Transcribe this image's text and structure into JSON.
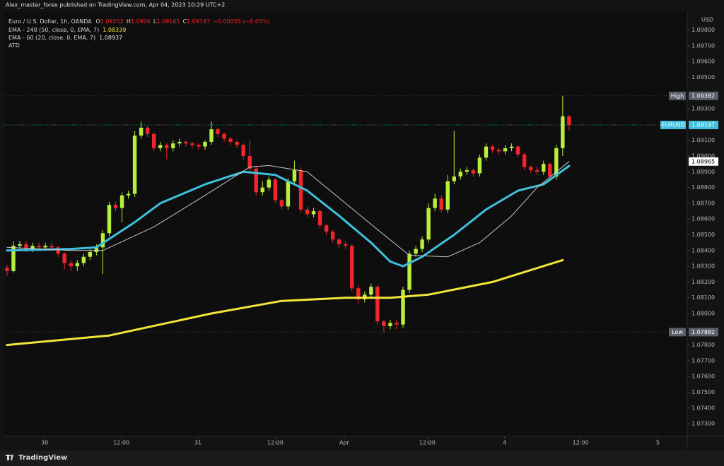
{
  "chart_data": {
    "type": "candlestick",
    "publisher": "Alex_master_forex published on TradingView.com, Apr 04, 2023 10:29 UTC+2",
    "title": "Euro / U.S. Dollar, 1h, OANDA",
    "ohlc_legend": [
      {
        "key": "O",
        "value": 1.09252
      },
      {
        "key": "H",
        "value": 1.0926
      },
      {
        "key": "L",
        "value": 1.09161
      },
      {
        "key": "C",
        "value": 1.09197
      }
    ],
    "change": "−0.00055 (−0.05%)",
    "currency": "USD",
    "brand": "TradingView",
    "up_color": "#b8ee3c",
    "down_color": "#f0262b",
    "grid": false,
    "open": [
      1.0829,
      1.0827,
      1.0843,
      1.0844,
      1.0841,
      1.0843,
      1.0842,
      1.0843,
      1.0842,
      1.0838,
      1.0832,
      1.083,
      1.0832,
      1.0836,
      1.0839,
      1.0842,
      1.0851,
      1.0869,
      1.0867,
      1.0875,
      1.0876,
      1.0913,
      1.0918,
      1.0914,
      1.0905,
      1.0907,
      1.0905,
      1.0908,
      1.0909,
      1.0908,
      1.0907,
      1.0906,
      1.0909,
      1.0917,
      1.0914,
      1.0911,
      1.0909,
      1.0907,
      1.09,
      1.0892,
      1.0877,
      1.088,
      1.0885,
      1.0872,
      1.0868,
      1.0884,
      1.0891,
      1.0866,
      1.0863,
      1.0865,
      1.0856,
      1.0852,
      1.0847,
      1.0844,
      1.0843,
      1.0816,
      1.0809,
      1.0812,
      1.0817,
      1.0795,
      1.0792,
      1.0794,
      1.0793,
      1.0815,
      1.0838,
      1.0841,
      1.0847,
      1.0867,
      1.0873,
      1.0866,
      1.0884,
      1.0887,
      1.089,
      1.0891,
      1.0889,
      1.0899,
      1.0906,
      1.0904,
      1.0903,
      1.0905,
      1.0906,
      1.0901,
      1.0893,
      1.0891,
      1.089,
      1.0895,
      1.0887,
      1.0905,
      1.09252
    ],
    "high": [
      1.0831,
      1.0846,
      1.0846,
      1.0846,
      1.0845,
      1.0845,
      1.0845,
      1.0845,
      1.0843,
      1.0839,
      1.0834,
      1.0834,
      1.0838,
      1.0841,
      1.0844,
      1.0853,
      1.0871,
      1.0871,
      1.0877,
      1.0878,
      1.0916,
      1.0922,
      1.0919,
      1.0915,
      1.0909,
      1.0908,
      1.091,
      1.0911,
      1.091,
      1.0909,
      1.0908,
      1.091,
      1.0922,
      1.0918,
      1.0915,
      1.0912,
      1.091,
      1.0908,
      1.091,
      1.0894,
      1.0884,
      1.0887,
      1.0886,
      1.0873,
      1.0886,
      1.0897,
      1.0893,
      1.0868,
      1.0867,
      1.0866,
      1.0857,
      1.0853,
      1.0848,
      1.0846,
      1.0844,
      1.0818,
      1.0814,
      1.0819,
      1.0818,
      1.0796,
      1.0796,
      1.0796,
      1.0817,
      1.084,
      1.0843,
      1.0849,
      1.087,
      1.0876,
      1.0875,
      1.0888,
      1.0916,
      1.0892,
      1.0893,
      1.0892,
      1.0901,
      1.0908,
      1.0907,
      1.0905,
      1.0907,
      1.0908,
      1.0907,
      1.0902,
      1.0894,
      1.0893,
      1.0897,
      1.0896,
      1.0907,
      1.09382,
      1.0926
    ],
    "low": [
      1.0824,
      1.0826,
      1.0841,
      1.0839,
      1.0839,
      1.084,
      1.084,
      1.084,
      1.0836,
      1.0828,
      1.0827,
      1.0827,
      1.083,
      1.0834,
      1.0837,
      1.0825,
      1.0849,
      1.0865,
      1.0858,
      1.0873,
      1.0874,
      1.0911,
      1.0912,
      1.0903,
      1.0903,
      1.0898,
      1.0903,
      1.0906,
      1.0906,
      1.0905,
      1.0904,
      1.0904,
      1.0907,
      1.0912,
      1.0909,
      1.0907,
      1.0905,
      1.0898,
      1.089,
      1.0875,
      1.0875,
      1.0878,
      1.087,
      1.0866,
      1.0866,
      1.0882,
      1.0864,
      1.0861,
      1.0861,
      1.0854,
      1.085,
      1.0845,
      1.0842,
      1.0841,
      1.0814,
      1.0806,
      1.0807,
      1.081,
      1.0793,
      1.07882,
      1.079,
      1.079,
      1.0791,
      1.0813,
      1.0836,
      1.0839,
      1.0845,
      1.0865,
      1.0864,
      1.0864,
      1.0882,
      1.0885,
      1.0888,
      1.0887,
      1.0887,
      1.0897,
      1.0902,
      1.0901,
      1.0901,
      1.0903,
      1.0899,
      1.0891,
      1.0889,
      1.0888,
      1.0888,
      1.0885,
      1.0885,
      1.09,
      1.09161
    ],
    "close": [
      1.0827,
      1.0843,
      1.0844,
      1.0841,
      1.0843,
      1.0842,
      1.0843,
      1.0842,
      1.0838,
      1.0832,
      1.083,
      1.0832,
      1.0836,
      1.0839,
      1.0842,
      1.0851,
      1.0869,
      1.0867,
      1.0875,
      1.0876,
      1.0913,
      1.0918,
      1.0914,
      1.0905,
      1.0907,
      1.0905,
      1.0908,
      1.0909,
      1.0908,
      1.0907,
      1.0906,
      1.0909,
      1.0917,
      1.0914,
      1.0911,
      1.0909,
      1.0907,
      1.09,
      1.0892,
      1.0877,
      1.088,
      1.0885,
      1.0872,
      1.0868,
      1.0884,
      1.0891,
      1.0866,
      1.0863,
      1.0865,
      1.0856,
      1.0852,
      1.0847,
      1.0844,
      1.0843,
      1.0816,
      1.0809,
      1.0812,
      1.0817,
      1.0795,
      1.0792,
      1.0794,
      1.0793,
      1.0815,
      1.0838,
      1.0841,
      1.0847,
      1.0867,
      1.0873,
      1.0866,
      1.0884,
      1.0887,
      1.089,
      1.0891,
      1.0889,
      1.0899,
      1.0906,
      1.0904,
      1.0903,
      1.0905,
      1.0906,
      1.0901,
      1.0893,
      1.0891,
      1.089,
      1.0895,
      1.0887,
      1.0905,
      1.09252,
      1.09197
    ],
    "series": [
      {
        "name": "EMA - 240 (50, close, 0, EMA, 7)",
        "color": "#f2e53a",
        "width": 3,
        "x": [
          0,
          16,
          32,
          43,
          53,
          60,
          66,
          76,
          87
        ],
        "values": [
          1.078,
          1.0786,
          1.08,
          1.0808,
          1.081,
          1.081,
          1.0812,
          1.082,
          1.08339
        ]
      },
      {
        "name": "EMA - 60 (20, close, 0, EMA, 7)",
        "color": "#3fc1de",
        "width": 3,
        "x": [
          0,
          10,
          14,
          20,
          24,
          31,
          37,
          42,
          47,
          52,
          57,
          60,
          62,
          65,
          70,
          75,
          80,
          84,
          88
        ],
        "values": [
          1.084,
          1.0841,
          1.0842,
          1.0858,
          1.087,
          1.0882,
          1.089,
          1.0888,
          1.0878,
          1.0862,
          1.0845,
          1.0833,
          1.083,
          1.0836,
          1.085,
          1.0866,
          1.0878,
          1.0882,
          1.08937
        ]
      },
      {
        "name": "ATD",
        "color": "#c8c8c8",
        "width": 1,
        "x": [
          0,
          10,
          15,
          23,
          31,
          38,
          41,
          47,
          53,
          59,
          63,
          69,
          74,
          79,
          83,
          88
        ],
        "values": [
          1.0842,
          1.084,
          1.084,
          1.0855,
          1.0875,
          1.0893,
          1.0894,
          1.089,
          1.087,
          1.085,
          1.0837,
          1.0836,
          1.0845,
          1.0862,
          1.088,
          1.08965
        ]
      }
    ],
    "markers": [
      {
        "label": "High",
        "value": 1.09382
      },
      {
        "label": "EURUSD",
        "value": 1.09197
      },
      {
        "value": 1.08965
      },
      {
        "label": "Low",
        "value": 1.07882
      }
    ],
    "xlim": [
      -1.1,
      106.5
    ],
    "xticks": [
      {
        "value": 5.9,
        "label": "30"
      },
      {
        "value": 17.9,
        "label": "12:00"
      },
      {
        "value": 29.9,
        "label": "31"
      },
      {
        "value": 42,
        "label": "12:00"
      },
      {
        "value": 52.8,
        "label": "Apr"
      },
      {
        "value": 65.8,
        "label": "12:00"
      },
      {
        "value": 77.9,
        "label": "4"
      },
      {
        "value": 89.8,
        "label": "12:00"
      },
      {
        "value": 101.9,
        "label": "5"
      }
    ],
    "ylim": [
      1.0722,
      1.0991
    ],
    "yticks": [
      {
        "value": 1.098,
        "label": "1.09800"
      },
      {
        "value": 1.097,
        "label": "1.09700"
      },
      {
        "value": 1.096,
        "label": "1.09600"
      },
      {
        "value": 1.095,
        "label": "1.09500"
      },
      {
        "value": 1.093,
        "label": "1.09300"
      },
      {
        "value": 1.091,
        "label": "1.09100"
      },
      {
        "value": 1.09,
        "label": "1.09000"
      },
      {
        "value": 1.089,
        "label": "1.08900"
      },
      {
        "value": 1.088,
        "label": "1.08800"
      },
      {
        "value": 1.087,
        "label": "1.08700"
      },
      {
        "value": 1.086,
        "label": "1.08600"
      },
      {
        "value": 1.085,
        "label": "1.08500"
      },
      {
        "value": 1.084,
        "label": "1.08400"
      },
      {
        "value": 1.083,
        "label": "1.08300"
      },
      {
        "value": 1.082,
        "label": "1.08200"
      },
      {
        "value": 1.081,
        "label": "1.08100"
      },
      {
        "value": 1.08,
        "label": "1.08000"
      },
      {
        "value": 1.078,
        "label": "1.07800"
      },
      {
        "value": 1.077,
        "label": "1.07700"
      },
      {
        "value": 1.076,
        "label": "1.07600"
      },
      {
        "value": 1.075,
        "label": "1.07500"
      },
      {
        "value": 1.074,
        "label": "1.07400"
      },
      {
        "value": 1.073,
        "label": "1.07300"
      }
    ]
  }
}
